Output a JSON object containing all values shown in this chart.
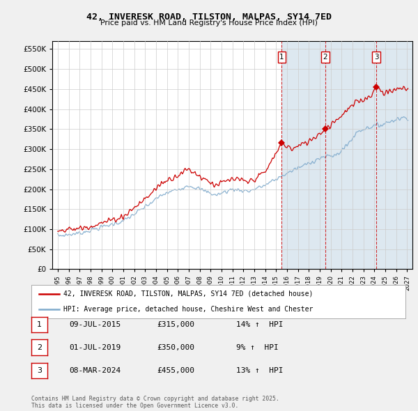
{
  "title": "42, INVERESK ROAD, TILSTON, MALPAS, SY14 7ED",
  "subtitle": "Price paid vs. HM Land Registry's House Price Index (HPI)",
  "red_label": "42, INVERESK ROAD, TILSTON, MALPAS, SY14 7ED (detached house)",
  "blue_label": "HPI: Average price, detached house, Cheshire West and Chester",
  "footnote": "Contains HM Land Registry data © Crown copyright and database right 2025.\nThis data is licensed under the Open Government Licence v3.0.",
  "transactions": [
    {
      "num": 1,
      "date": "09-JUL-2015",
      "price": 315000,
      "pct": "14%",
      "dir": "↑"
    },
    {
      "num": 2,
      "date": "01-JUL-2019",
      "price": 350000,
      "pct": "9%",
      "dir": "↑"
    },
    {
      "num": 3,
      "date": "08-MAR-2024",
      "price": 455000,
      "pct": "13%",
      "dir": "↑"
    }
  ],
  "transaction_years": [
    2015.52,
    2019.5,
    2024.18
  ],
  "trans_prices": [
    315000,
    350000,
    455000
  ],
  "ylim": [
    0,
    570000
  ],
  "yticks": [
    0,
    50000,
    100000,
    150000,
    200000,
    250000,
    300000,
    350000,
    400000,
    450000,
    500000,
    550000
  ],
  "xlim_start": 1994.5,
  "xlim_end": 2027.5,
  "background_color": "#f0f0f0",
  "plot_bg_color": "#ffffff",
  "red_color": "#cc0000",
  "blue_color": "#7faacc",
  "shade_color": "#dde8f0",
  "grid_color": "#cccccc",
  "hatch_color": "#c8d8e8"
}
